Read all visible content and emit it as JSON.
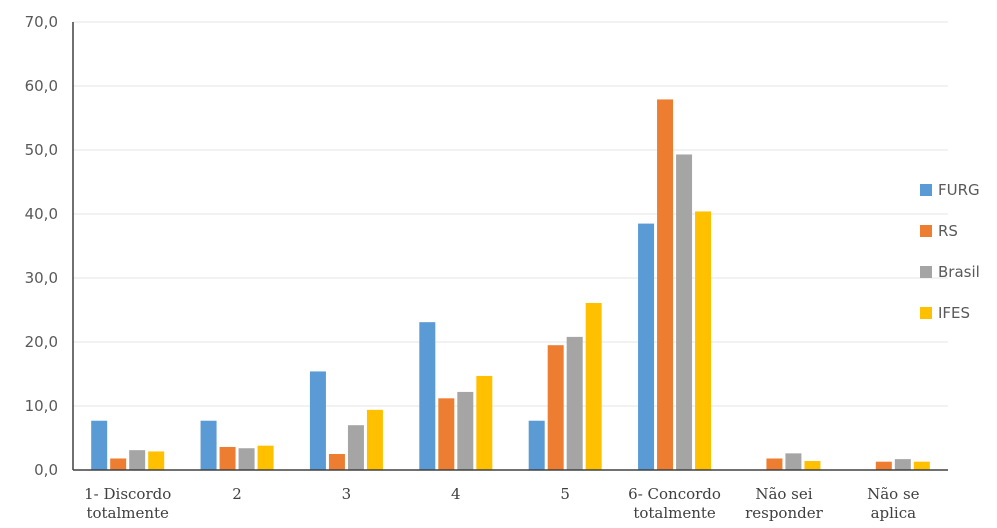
{
  "chart_data": {
    "type": "bar",
    "title": "",
    "xlabel": "",
    "ylabel": "",
    "ylim": [
      0,
      70
    ],
    "yticks": [
      "0,0",
      "10,0",
      "20,0",
      "30,0",
      "40,0",
      "50,0",
      "60,0",
      "70,0"
    ],
    "grid": true,
    "legend_position": "right",
    "categories": [
      [
        "1- Discordo",
        "totalmente"
      ],
      [
        "2"
      ],
      [
        "3"
      ],
      [
        "4"
      ],
      [
        "5"
      ],
      [
        "6- Concordo",
        "totalmente"
      ],
      [
        "Não sei",
        "responder"
      ],
      [
        "Não se",
        "aplica"
      ]
    ],
    "series": [
      {
        "name": "FURG",
        "color": "#5b9bd5",
        "values": [
          7.7,
          7.7,
          15.4,
          23.1,
          7.7,
          38.5,
          0,
          0
        ]
      },
      {
        "name": "RS",
        "color": "#ed7d31",
        "values": [
          1.8,
          3.6,
          2.5,
          11.2,
          19.5,
          57.9,
          1.8,
          1.3
        ]
      },
      {
        "name": "Brasil",
        "color": "#a5a5a5",
        "values": [
          3.1,
          3.4,
          7.0,
          12.2,
          20.8,
          49.3,
          2.6,
          1.7
        ]
      },
      {
        "name": "IFES",
        "color": "#ffc000",
        "values": [
          2.9,
          3.8,
          9.4,
          14.7,
          26.1,
          40.4,
          1.4,
          1.3
        ]
      }
    ]
  }
}
